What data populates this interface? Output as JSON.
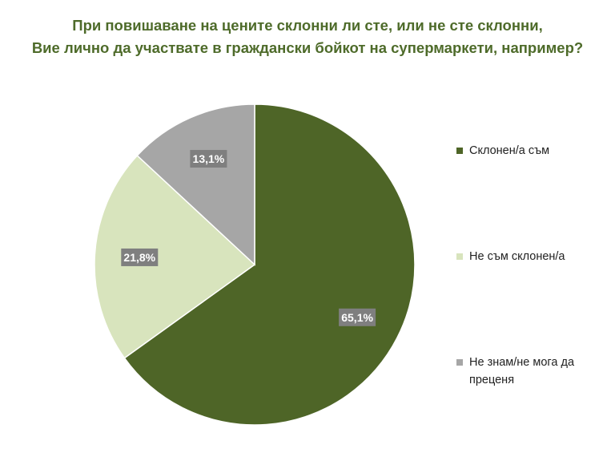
{
  "title_lines": [
    "При повишаване на цените склонни ли сте, или не сте склонни,",
    "Вие лично да участвате в граждански бойкот на супермаркети, например?"
  ],
  "chart_data": {
    "type": "pie",
    "title": "При повишаване на цените склонни ли сте, или не сте склонни, Вие лично да участвате в граждански бойкот на супермаркети, например?",
    "slices": [
      {
        "label": "Склонен/а съм",
        "value": 65.1,
        "display": "65,1%",
        "color": "#4e6527"
      },
      {
        "label": "Не съм склонен/а",
        "value": 21.8,
        "display": "21,8%",
        "color": "#d8e4bd"
      },
      {
        "label": "Не знам/не мога да преценя",
        "value": 13.1,
        "display": "13,1%",
        "color": "#a6a6a6"
      }
    ],
    "data_label_bg": "#7f7f7f",
    "data_label_color": "#ffffff",
    "legend_position": "right"
  },
  "legend": [
    {
      "label": "Склонен/а съм"
    },
    {
      "label": "Не съм склонен/а"
    },
    {
      "label": "Не знам/не мога да преценя"
    }
  ]
}
